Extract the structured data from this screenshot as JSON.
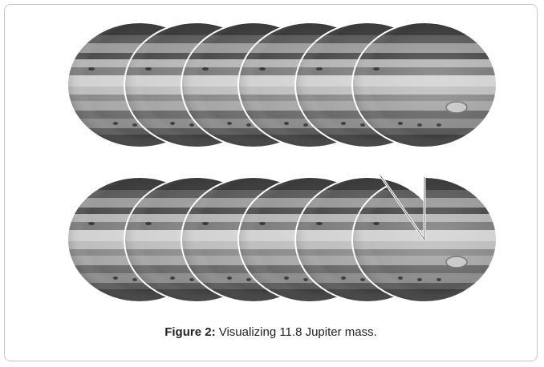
{
  "figure": {
    "label": "Figure 2:",
    "caption": " Visualizing 11.8 Jupiter mass.",
    "jupiter_count": 11.8,
    "rows": [
      {
        "full_planets": 6,
        "partial_fraction": 0
      },
      {
        "full_planets": 5,
        "partial_fraction": 0.8
      }
    ]
  }
}
